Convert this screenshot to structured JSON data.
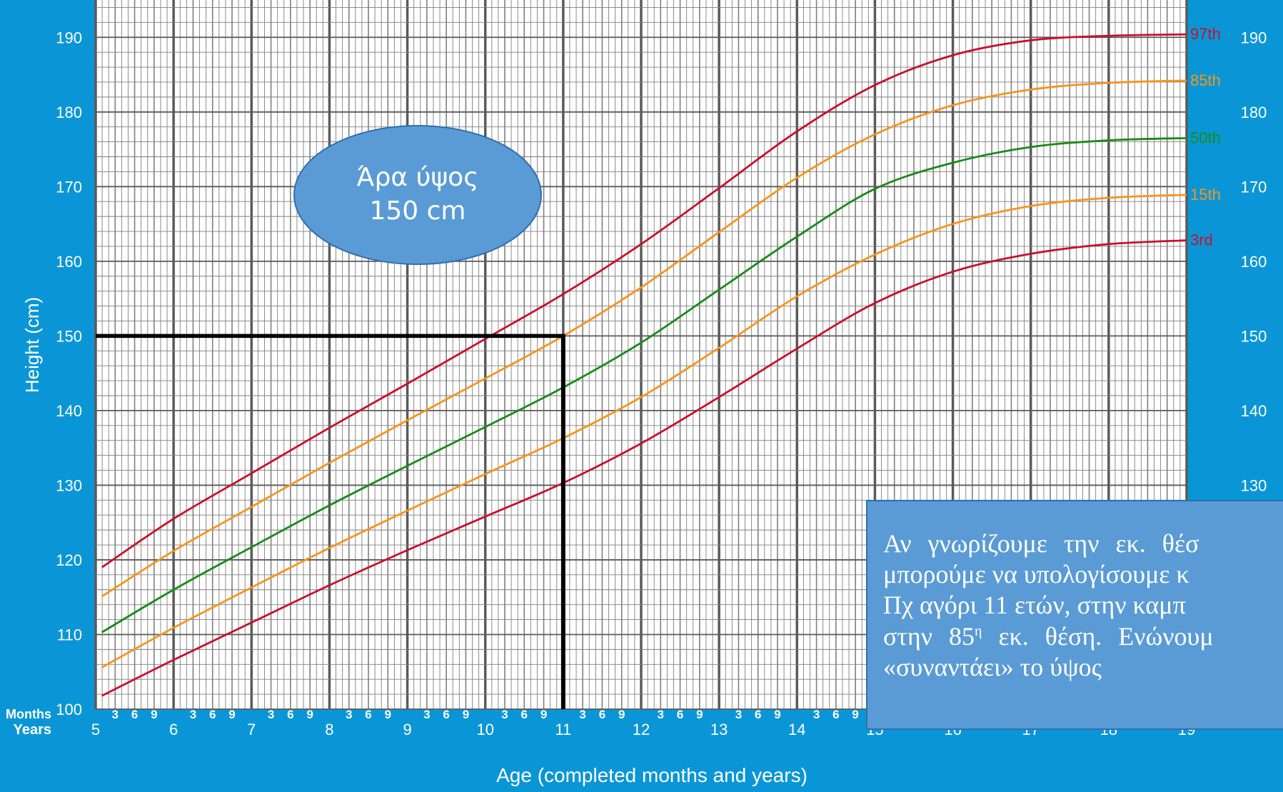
{
  "chart_data": {
    "type": "line",
    "ylabel": "Height (cm)",
    "xlabel": "Age (completed months and years)",
    "row_labels": {
      "months": "Months",
      "years": "Years"
    },
    "month_ticks": [
      "3",
      "6",
      "9"
    ],
    "xlim": [
      5,
      19
    ],
    "ylim": [
      100,
      195
    ],
    "x_ticks": [
      5,
      6,
      7,
      8,
      9,
      10,
      11,
      12,
      13,
      14,
      15,
      16,
      17,
      18,
      19
    ],
    "y_ticks": [
      100,
      110,
      120,
      130,
      140,
      150,
      160,
      170,
      180,
      190
    ],
    "grid": true,
    "series": [
      {
        "name": "97th",
        "color": "#c8102e",
        "x": [
          5.08,
          6,
          7,
          8,
          9,
          10,
          11,
          12,
          13,
          14,
          15,
          16,
          17,
          18,
          19
        ],
        "y": [
          119,
          125.5,
          131.6,
          137.7,
          143.6,
          149.6,
          155.6,
          162.3,
          169.8,
          177.4,
          183.6,
          187.6,
          189.6,
          190.2,
          190.4
        ]
      },
      {
        "name": "85th",
        "color": "#f7941d",
        "x": [
          5.08,
          6,
          7,
          8,
          9,
          10,
          11,
          12,
          13,
          14,
          15,
          16,
          17,
          18,
          19
        ],
        "y": [
          115.1,
          121.2,
          127.1,
          133,
          138.7,
          144.3,
          150,
          156.5,
          163.9,
          171.2,
          177,
          180.9,
          183,
          183.9,
          184.2
        ]
      },
      {
        "name": "50th",
        "color": "#1a8a1a",
        "x": [
          5.08,
          6,
          7,
          8,
          9,
          10,
          11,
          12,
          13,
          14,
          15,
          16,
          17,
          18,
          19
        ],
        "y": [
          110.3,
          116,
          121.7,
          127.3,
          132.6,
          137.8,
          143.1,
          149.1,
          156.2,
          163.3,
          169.7,
          173.2,
          175.3,
          176.2,
          176.5
        ]
      },
      {
        "name": "15th",
        "color": "#f7941d",
        "x": [
          5.08,
          6,
          7,
          8,
          9,
          10,
          11,
          12,
          13,
          14,
          15,
          16,
          17,
          18,
          19
        ],
        "y": [
          105.6,
          110.9,
          116.3,
          121.6,
          126.6,
          131.5,
          136.3,
          141.8,
          148.4,
          155.3,
          160.9,
          165,
          167.4,
          168.5,
          168.9
        ]
      },
      {
        "name": "3rd",
        "color": "#c8102e",
        "x": [
          5.08,
          6,
          7,
          8,
          9,
          10,
          11,
          12,
          13,
          14,
          15,
          16,
          17,
          18,
          19
        ],
        "y": [
          101.8,
          106.6,
          111.6,
          116.6,
          121.3,
          125.8,
          130.3,
          135.6,
          141.8,
          148.3,
          154.4,
          158.6,
          161,
          162.3,
          162.8
        ]
      }
    ],
    "reference_lines": {
      "color": "#000000",
      "horizontal": {
        "y": 150,
        "x_from": 5,
        "x_to": 11
      },
      "vertical": {
        "x": 11,
        "y_from": 100,
        "y_to": 150
      }
    }
  },
  "callout": {
    "line1": "Άρα ύψος",
    "line2": "150 cm",
    "fill": "#5b9bd5"
  },
  "info_box": {
    "line1": "Αν γνωρίζουμε την εκ. θέσ",
    "line2": "μπορούμε να υπολογίσουμε κ",
    "line3": "Πχ αγόρι 11 ετών, στην καμπ",
    "line4_a": "στην 85",
    "line4_sup": "η",
    "line4_b": " εκ. θέση. Ενώνουμ",
    "line5": "«συναντάει» το ύψος"
  },
  "colors": {
    "background": "#0a96d6",
    "plot_area": "#ffffff",
    "grid_minor": "#7f7f7f",
    "grid_major": "#5a5a5a"
  }
}
